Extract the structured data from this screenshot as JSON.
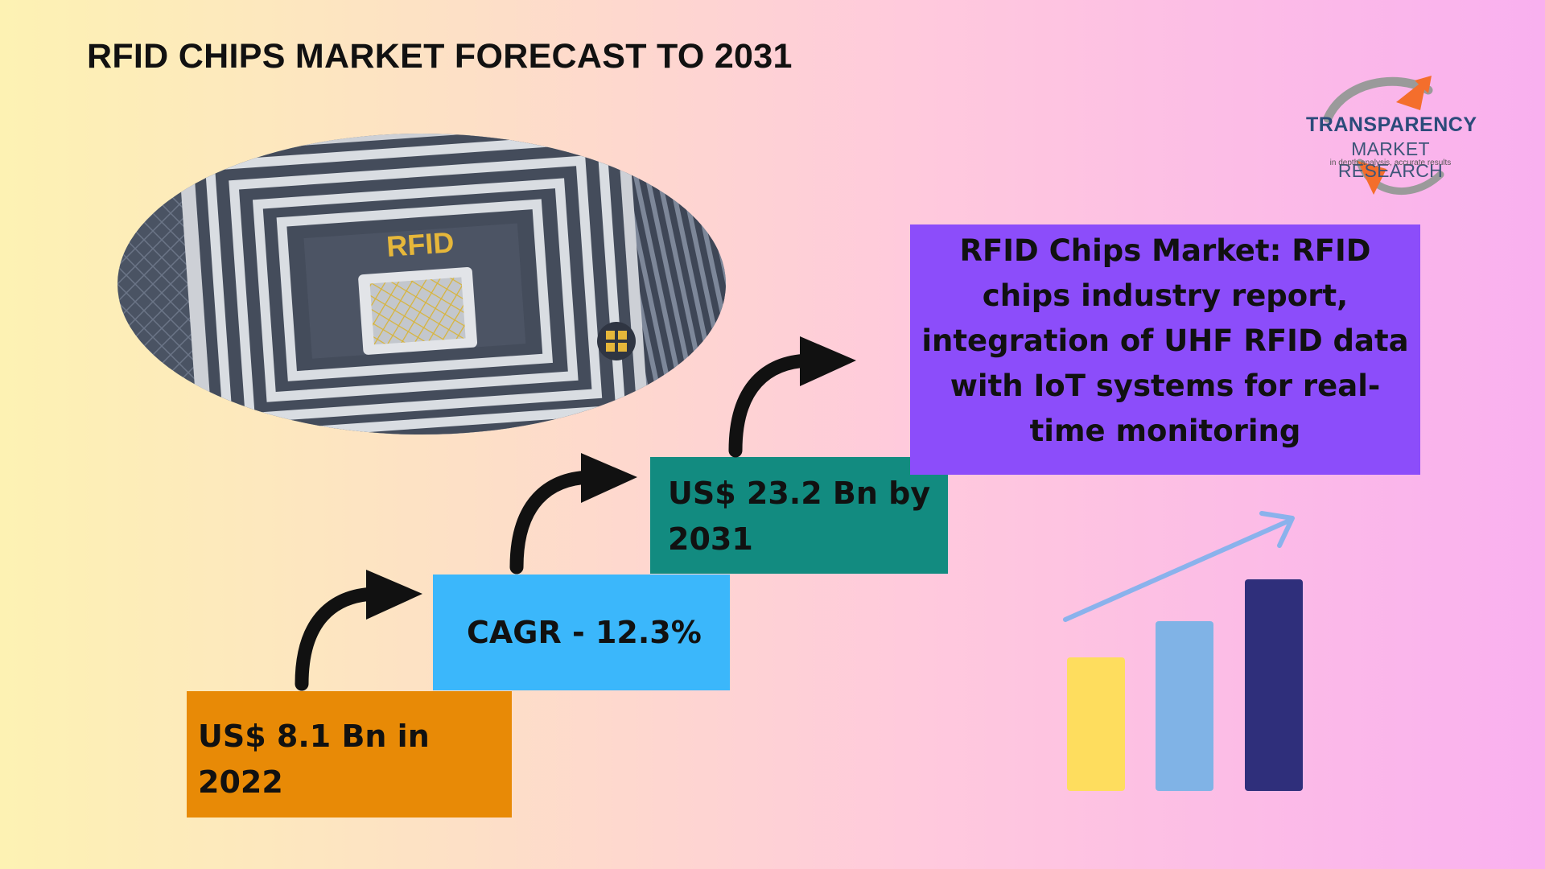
{
  "title": "RFID CHIPS MARKET FORECAST TO 2031",
  "logo": {
    "line1": "TRANSPARENCY",
    "line2": "MARKET RESEARCH",
    "line3": "in depth analysis, accurate results",
    "colors": {
      "primary": "#2b4b7a",
      "accent": "#f46e2c",
      "ring": "#9a9a9a"
    }
  },
  "photo": {
    "icon": "rfid-chip-image",
    "label": "RFID"
  },
  "steps": [
    {
      "text": "US$ 8.1 Bn in 2022",
      "color": "#e88a06"
    },
    {
      "text": "CAGR - 12.3%",
      "color": "#3bb7fb"
    },
    {
      "text": "US$ 23.2 Bn by 2031",
      "color": "#128b80"
    }
  ],
  "info_box": {
    "text": "RFID Chips Market: RFID chips industry report, integration of UHF RFID data with IoT systems for real-time monitoring",
    "color": "#8c4dfa"
  },
  "growth_icon": {
    "icon": "bar-chart-growth-icon",
    "bar_colors": [
      "#fedd5e",
      "#80b3e6",
      "#2f2f7b"
    ],
    "arrow_color": "#8ab2ec"
  }
}
